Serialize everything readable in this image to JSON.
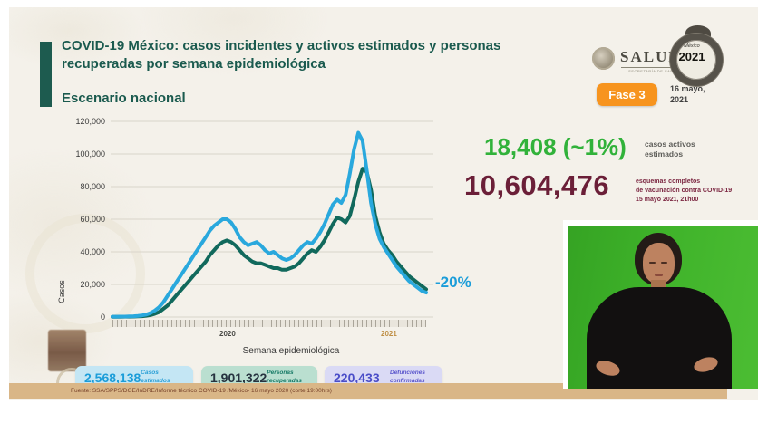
{
  "slide": {
    "title": "COVID-19 México: casos incidentes y activos estimados y personas recuperadas por semana epidemiológica",
    "subtitle": "Escenario nacional"
  },
  "header": {
    "institution": "SALUD",
    "institution_sub": "SECRETARÍA DE SALUD",
    "year_logo_top": "México",
    "year_logo": "2021",
    "phase_badge": "Fase 3",
    "date_line1": "16 mayo,",
    "date_line2": "2021"
  },
  "highlights": {
    "active_value": "18,408 (~1%)",
    "active_label_line1": "casos activos",
    "active_label_line2": "estimados",
    "vaccination_value": "10,604,476",
    "vaccination_label_line1": "esquemas completos",
    "vaccination_label_line2": "de vacunación contra COVID-19",
    "vaccination_label_line3": "15 mayo 2021, 21h00",
    "trend_label": "-20%"
  },
  "summary_boxes": [
    {
      "value": "2,568,138",
      "label": "Casos estimados"
    },
    {
      "value": "1,901,322",
      "label": "Personas recuperadas"
    },
    {
      "value": "220,433",
      "label": "Defunciones confirmadas"
    }
  ],
  "footer": {
    "source": "Fuente: SSA/SPPS/DGE/InDRE/Informe técnico COVID-19 /México- 16 mayo 2020 (corte 19:00hrs)"
  },
  "colors": {
    "title_green": "#1a5a4e",
    "badge_orange": "#f7941e",
    "active_green": "#31b23a",
    "vaccination_maroon": "#6b1f38",
    "estimados_blue": "#29a8dd",
    "recuperadas_teal": "#11695c",
    "defunciones_purple": "#4a4dc8"
  },
  "chart_data": {
    "type": "line",
    "title": "",
    "xlabel": "Semana epidemiológica",
    "ylabel": "Casos",
    "ylim": [
      0,
      120000
    ],
    "yticks": [
      0,
      20000,
      40000,
      60000,
      80000,
      100000,
      120000
    ],
    "grid": true,
    "x_year_labels": [
      "2020",
      "2021"
    ],
    "annotation": {
      "text": "-20%",
      "color": "#1b9dd9",
      "position": "end-of-series"
    },
    "series": [
      {
        "name": "Casos estimados",
        "color": "#29a8dd",
        "width": 4,
        "values": [
          200,
          200,
          300,
          300,
          400,
          500,
          700,
          1000,
          1500,
          2500,
          4000,
          6000,
          9000,
          13000,
          17000,
          21000,
          25000,
          29000,
          33000,
          37000,
          41000,
          45000,
          49000,
          53000,
          56000,
          58000,
          60000,
          60000,
          58000,
          54000,
          49000,
          46000,
          44000,
          45000,
          46000,
          44000,
          41000,
          39000,
          40000,
          38000,
          36000,
          35000,
          36000,
          38000,
          41000,
          44000,
          46000,
          45000,
          48000,
          52000,
          57000,
          63000,
          69000,
          72000,
          70000,
          75000,
          88000,
          103000,
          113000,
          108000,
          90000,
          70000,
          57000,
          48000,
          43000,
          39000,
          35000,
          31000,
          28000,
          25000,
          22000,
          20000,
          18000,
          16000,
          15000
        ]
      },
      {
        "name": "Personas recuperadas",
        "color": "#11695c",
        "width": 4,
        "values": [
          100,
          100,
          100,
          200,
          200,
          300,
          400,
          500,
          800,
          1200,
          2000,
          3000,
          5000,
          7000,
          10000,
          13000,
          16000,
          19000,
          22000,
          25000,
          28000,
          31000,
          34000,
          38000,
          41000,
          44000,
          46000,
          47000,
          46000,
          44000,
          41000,
          38000,
          36000,
          34000,
          33000,
          33000,
          32000,
          31000,
          30000,
          30000,
          29000,
          29000,
          30000,
          31000,
          33000,
          36000,
          39000,
          41000,
          40000,
          43000,
          47000,
          52000,
          57000,
          61000,
          60000,
          58000,
          62000,
          72000,
          83000,
          91000,
          89000,
          78000,
          62000,
          52000,
          45000,
          41000,
          38000,
          34000,
          31000,
          28000,
          25000,
          23000,
          21000,
          19000,
          17000
        ]
      }
    ]
  }
}
